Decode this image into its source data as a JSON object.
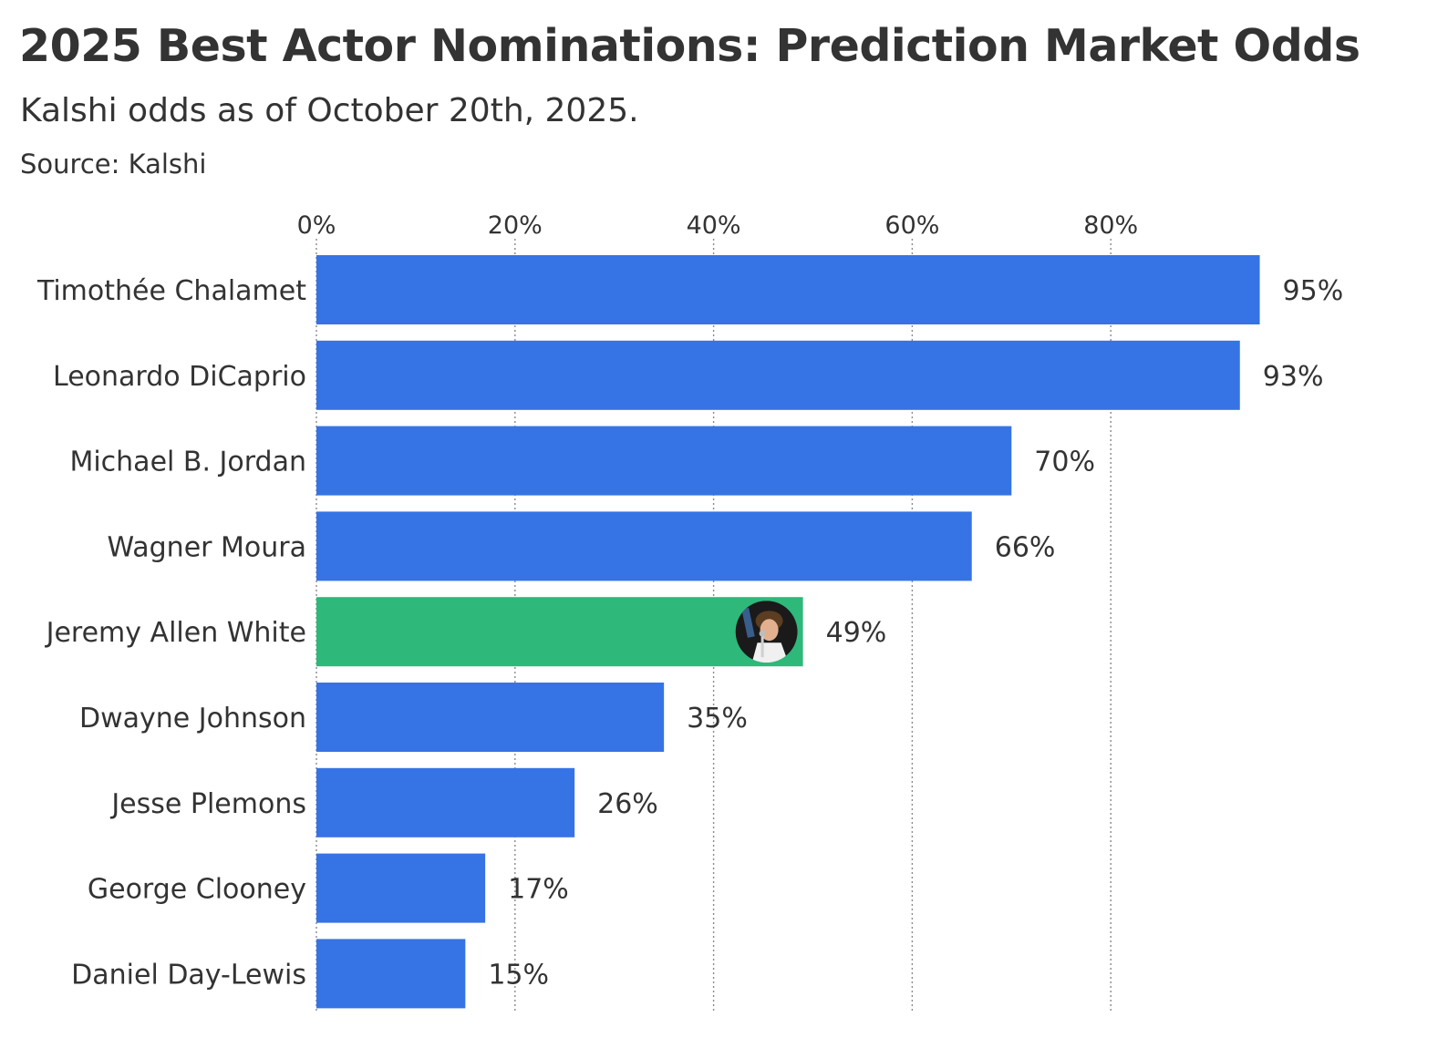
{
  "chart_data": {
    "type": "bar",
    "orientation": "horizontal",
    "title": "2025 Best Actor Nominations: Prediction Market Odds",
    "subtitle": "Kalshi odds as of October 20th, 2025.",
    "source": "Source: Kalshi",
    "xlim": [
      0,
      100
    ],
    "x_ticks": [
      0,
      20,
      40,
      60,
      80
    ],
    "x_tick_labels": [
      "0%",
      "20%",
      "40%",
      "60%",
      "80%"
    ],
    "axis_position": "top",
    "grid": "vertical dotted",
    "legend": "none",
    "categories": [
      "Timothée Chalamet",
      "Leonardo DiCaprio",
      "Michael B. Jordan",
      "Wagner Moura",
      "Jeremy Allen White",
      "Dwayne Johnson",
      "Jesse Plemons",
      "George Clooney",
      "Daniel Day-Lewis"
    ],
    "values": [
      95,
      93,
      70,
      66,
      49,
      35,
      26,
      17,
      15
    ],
    "value_labels": [
      "95%",
      "93%",
      "70%",
      "66%",
      "49%",
      "35%",
      "26%",
      "17%",
      "15%"
    ],
    "highlight_index": 4,
    "highlight_marker": "avatar",
    "colors": {
      "bar": "#3673e4",
      "highlight": "#2eb87a",
      "grid": "#8a8a8a",
      "text": "#333333"
    }
  }
}
